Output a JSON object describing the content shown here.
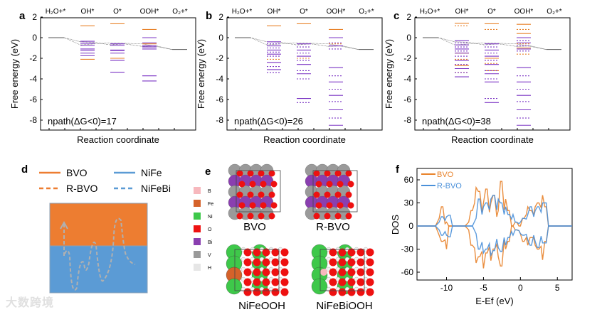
{
  "colors": {
    "orange": "#e8822a",
    "purple": "#7b35c4",
    "gray": "#555555",
    "blue": "#4a90d9",
    "bvo": "#ed7d31",
    "nife": "#5b9bd5",
    "path": "#b0b0b0"
  },
  "energy_panels": [
    {
      "label": "a",
      "npath": "npath(ΔG<0)=17",
      "dashed": false,
      "levels": {
        "OH*": {
          "orange": [
            1.15,
            -2.1
          ],
          "purple": [
            -0.35,
            -0.55,
            -0.75,
            -1.1,
            -1.25,
            -1.5,
            -1.75
          ]
        },
        "O*": {
          "orange": [
            1.35,
            -2.0
          ],
          "purple": [
            -0.6,
            -0.75,
            -1.2,
            -1.25,
            -1.5,
            -2.2,
            -3.35
          ]
        },
        "OOH*": {
          "orange": [
            0.8,
            -0.6
          ],
          "purple": [
            0,
            -0.5,
            -0.8,
            -0.9,
            -1.1,
            -3.7,
            -4.2
          ]
        }
      }
    },
    {
      "label": "b",
      "npath": "npath(ΔG<0)=26",
      "dashed": true,
      "levels": {
        "OH*": {
          "orange": [
            1.15,
            -2.1
          ],
          "purple": [
            -0.4,
            -0.6,
            -0.8,
            -1.0,
            -1.2,
            -1.4,
            -1.6,
            -1.8,
            -2.4,
            -2.8,
            -3.1,
            -3.4
          ]
        },
        "O*": {
          "orange": [
            1.35,
            -2.0
          ],
          "purple": [
            -0.6,
            -0.9,
            -1.2,
            -1.5,
            -1.8,
            -2.2,
            -2.6,
            -3.2,
            -3.5,
            -4.0,
            -5.9,
            -6.3
          ]
        },
        "OOH*": {
          "orange": [
            0.8,
            -0.6
          ],
          "purple": [
            0,
            -0.5,
            -0.8,
            -1.1,
            -2.9,
            -3.7,
            -4.3,
            -5.0,
            -5.6,
            -6.2,
            -7.0,
            -7.8,
            -8.5
          ]
        }
      }
    },
    {
      "label": "c",
      "npath": "npath(ΔG<0)=38",
      "dashed": true,
      "levels": {
        "OH*": {
          "orange": [
            1.4,
            1.15,
            -1.5,
            -2.1,
            -2.7,
            -3.4
          ],
          "purple": [
            -0.3,
            -0.5,
            -0.7,
            -0.9,
            -1.1,
            -1.3,
            -1.5,
            -1.8,
            -2.2,
            -2.6,
            -3.0,
            -3.4,
            -3.8
          ]
        },
        "O*": {
          "orange": [
            1.35,
            0.8,
            -2.0,
            -2.5,
            -3.2
          ],
          "purple": [
            -0.6,
            -0.9,
            -1.2,
            -1.5,
            -1.8,
            -2.2,
            -2.6,
            -3.2,
            -3.5,
            -4.0,
            -4.3,
            -5.9,
            -6.3
          ]
        },
        "OOH*": {
          "orange": [
            1.3,
            0.8,
            0.4,
            -0.6,
            -1.0,
            -1.6
          ],
          "purple": [
            0,
            -0.3,
            -0.5,
            -0.8,
            -1.1,
            -1.3,
            -2.9,
            -3.7,
            -4.3,
            -5.0,
            -5.6,
            -6.2,
            -7.0,
            -7.8,
            -8.5
          ]
        }
      }
    }
  ],
  "energy_common": {
    "states": [
      "H2O+*",
      "OH*",
      "O*",
      "OOH*",
      "O2+*"
    ],
    "ylabel": "Free energy (eV)",
    "xlabel": "Reaction coordinate",
    "yticks": [
      2,
      0,
      -2,
      -4,
      -6,
      -8
    ],
    "ylim": [
      -9,
      2
    ],
    "start": 0,
    "end": -1.15
  },
  "panel_d": {
    "label": "d",
    "legend": [
      "BVO",
      "R-BVO",
      "NiFe",
      "NiFeBi"
    ]
  },
  "panel_e": {
    "label": "e",
    "legend": [
      {
        "el": "B",
        "c": "#f7b8bd"
      },
      {
        "el": "Fe",
        "c": "#d5622a"
      },
      {
        "el": "Ni",
        "c": "#3ec84a"
      },
      {
        "el": "O",
        "c": "#ee1111"
      },
      {
        "el": "Bi",
        "c": "#8a3fb0"
      },
      {
        "el": "V",
        "c": "#9a9a9a"
      },
      {
        "el": "H",
        "c": "#e6e6e6"
      }
    ],
    "structures": [
      "BVO",
      "R-BVO",
      "NiFeOOH",
      "NiFeBiOOH"
    ]
  },
  "chart_data": {
    "type": "line",
    "title": "",
    "label": "f",
    "xlabel": "E-Ef (eV)",
    "ylabel": "DOS",
    "xlim": [
      -14,
      7
    ],
    "ylim": [
      -70,
      75
    ],
    "xticks": [
      -10,
      -5,
      0,
      5
    ],
    "yticks": [
      60,
      30,
      0,
      -30,
      -60
    ],
    "legend_position": "top-left",
    "x": [
      -11.5,
      -11,
      -10.5,
      -10,
      -9.5,
      -9,
      -8.5,
      -8,
      -7.5,
      -7,
      -6.5,
      -6,
      -5.5,
      -5,
      -4.5,
      -4,
      -3.5,
      -3,
      -2.5,
      -2,
      -1.5,
      -1,
      -0.5,
      0,
      0.5,
      1,
      1.5,
      2,
      2.5,
      3,
      3.5,
      4
    ],
    "series": [
      {
        "name": "BVO",
        "up": [
          0,
          10,
          25,
          5,
          0,
          0,
          0,
          0,
          0,
          5,
          20,
          50,
          45,
          30,
          48,
          30,
          40,
          20,
          58,
          35,
          20,
          0,
          5,
          0,
          10,
          25,
          20,
          25,
          30,
          40,
          25,
          0
        ],
        "down": [
          0,
          -12,
          -20,
          -30,
          0,
          0,
          0,
          0,
          0,
          -5,
          -25,
          -48,
          -40,
          -55,
          -35,
          -45,
          -30,
          -40,
          -52,
          -30,
          -20,
          0,
          -5,
          -10,
          -20,
          -25,
          -15,
          -25,
          -30,
          -44,
          -20,
          0
        ]
      },
      {
        "name": "R-BVO",
        "up": [
          0,
          5,
          12,
          12,
          14,
          0,
          0,
          0,
          0,
          0,
          0,
          10,
          35,
          25,
          30,
          35,
          40,
          35,
          30,
          25,
          15,
          15,
          5,
          5,
          10,
          15,
          25,
          20,
          25,
          30,
          30,
          0
        ],
        "down": [
          0,
          -5,
          -12,
          -12,
          -14,
          0,
          0,
          0,
          0,
          0,
          0,
          -10,
          -30,
          -35,
          -30,
          -38,
          -32,
          -28,
          -33,
          -25,
          -15,
          -12,
          -5,
          -10,
          -12,
          -18,
          -25,
          -20,
          -28,
          -22,
          -22,
          0
        ]
      }
    ]
  },
  "watermark": "大数跨境"
}
